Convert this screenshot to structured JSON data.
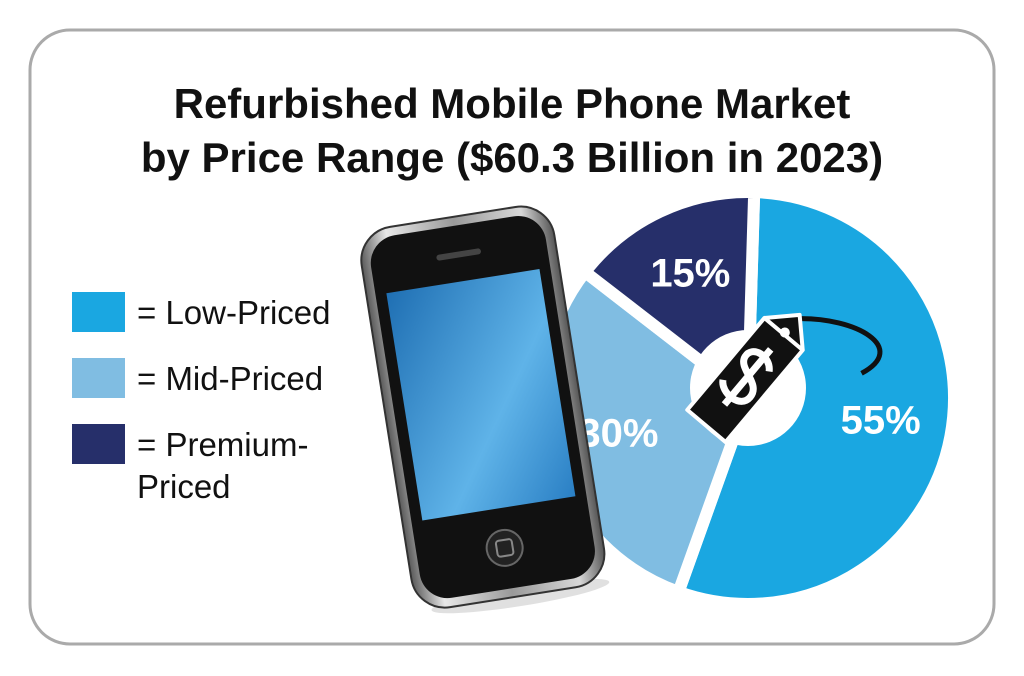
{
  "chart_data": {
    "type": "pie",
    "title": [
      "Refurbished Mobile Phone Market",
      "by Price Range ($60.3 Billion in 2023)"
    ],
    "categories": [
      "= Low-Priced",
      "= Mid-Priced",
      "= Premium-Priced"
    ],
    "values": [
      55,
      30,
      15
    ],
    "value_labels": [
      "55%",
      "30%",
      "15%"
    ],
    "colors": [
      "#1aa7e1",
      "#80bde2",
      "#262f6a"
    ],
    "legend": "left"
  }
}
